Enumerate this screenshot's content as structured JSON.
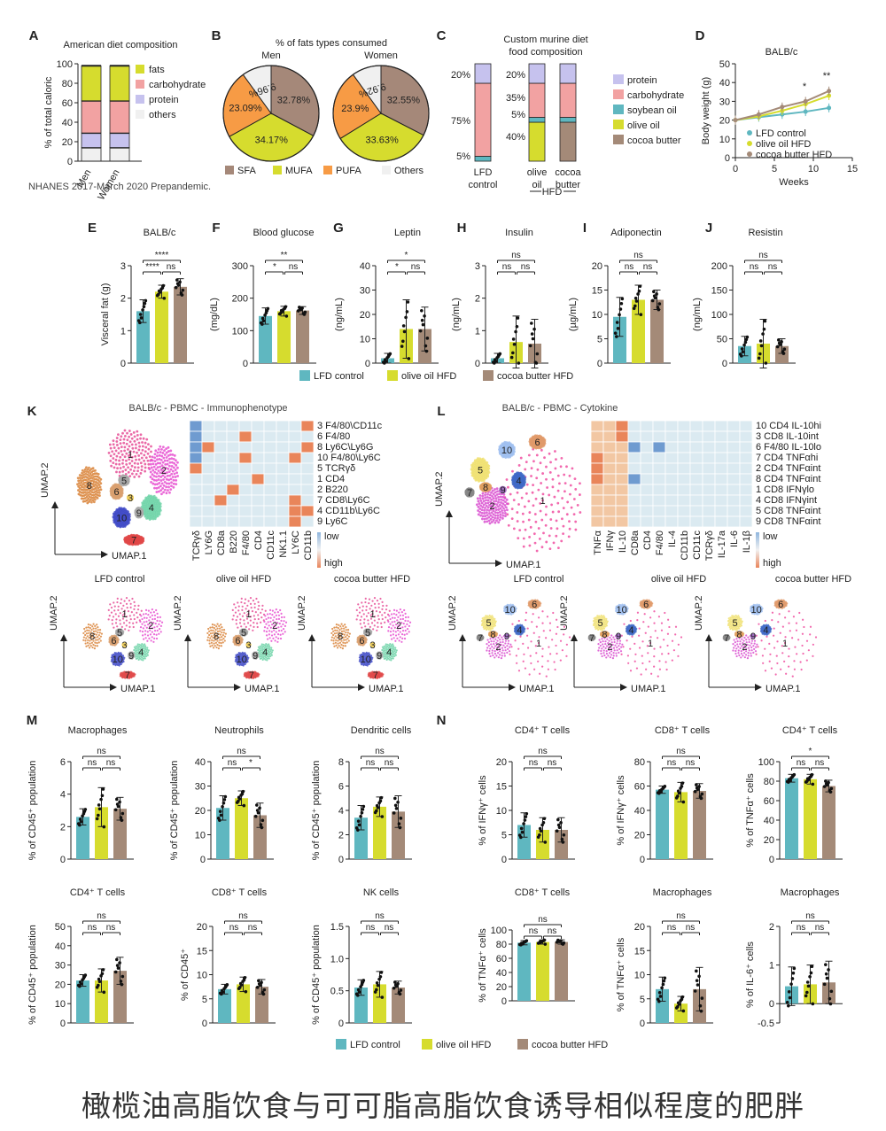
{
  "colors": {
    "lfd": "#5fb7c0",
    "olive": "#d6dc2e",
    "cocoa": "#a48a78",
    "fats": "#d6dc2e",
    "carb": "#f2a2a2",
    "protein": "#c6c2ee",
    "others": "#f0f0f0",
    "sfa": "#a58879",
    "mufa": "#d6dc2e",
    "pufa": "#f79b45",
    "soy": "#5fb7c0"
  },
  "caption": "橄榄油高脂饮食与可可脂高脂饮食诱导相似程度的肥胖",
  "legend_groups": [
    "LFD control",
    "olive oil HFD",
    "cocoa butter HFD"
  ],
  "panels": {
    "A": "A",
    "B": "B",
    "C": "C",
    "D": "D",
    "E": "E",
    "F": "F",
    "G": "G",
    "H": "H",
    "I": "I",
    "J": "J",
    "K": "K",
    "L": "L",
    "M": "M",
    "N": "N"
  },
  "chart_data": [
    {
      "id": "A",
      "type": "bar",
      "title": "American diet composition",
      "ylabel": "% of total caloric",
      "categories": [
        "Men",
        "Women"
      ],
      "ylim": [
        0,
        100
      ],
      "yticks": [
        "0",
        "20",
        "40",
        "60",
        "80",
        "100"
      ],
      "series": [
        {
          "name": "others",
          "values": [
            14,
            14
          ]
        },
        {
          "name": "protein",
          "values": [
            15,
            15
          ]
        },
        {
          "name": "carbohydrate",
          "values": [
            33,
            33
          ]
        },
        {
          "name": "fats",
          "values": [
            36,
            36
          ]
        }
      ],
      "note": "NHANES 2017-March 2020 Prepandemic."
    },
    {
      "id": "B",
      "type": "pie",
      "title": "% of fats types consumed",
      "legend": [
        "SFA",
        "MUFA",
        "PUFA",
        "Others"
      ],
      "pies": [
        {
          "name": "Men",
          "labels": [
            "32.78%",
            "34.17%",
            "23.09%",
            "9.96%"
          ],
          "values": [
            32.78,
            34.17,
            23.09,
            9.96
          ]
        },
        {
          "name": "Women",
          "labels": [
            "32.55%",
            "33.63%",
            "23.9%",
            "9.92%"
          ],
          "values": [
            32.55,
            33.63,
            23.9,
            9.92
          ]
        }
      ]
    },
    {
      "id": "C",
      "type": "bar",
      "title": "Custom murine diet food composition",
      "legend": [
        "protein",
        "carbohydrate",
        "soybean oil",
        "olive oil",
        "cocoa butter"
      ],
      "categories": [
        "LFD control",
        "olive oil",
        "cocoa butter"
      ],
      "group_label": "HFD",
      "stacks": [
        [
          {
            "c": "soy",
            "v": 5
          },
          {
            "c": "carb",
            "v": 75
          },
          {
            "c": "protein",
            "v": 20
          }
        ],
        [
          {
            "c": "olive",
            "v": 40
          },
          {
            "c": "soy",
            "v": 5
          },
          {
            "c": "carb",
            "v": 35
          },
          {
            "c": "protein",
            "v": 20
          }
        ],
        [
          {
            "c": "cocoa",
            "v": 40
          },
          {
            "c": "soy",
            "v": 5
          },
          {
            "c": "carb",
            "v": 35
          },
          {
            "c": "protein",
            "v": 20
          }
        ]
      ],
      "labels_left": [
        [
          "5%",
          "75%",
          "20%"
        ],
        [
          "40%",
          "5%",
          "35%",
          "20%"
        ],
        [
          "40%",
          "5%",
          "35%",
          "20%"
        ]
      ]
    },
    {
      "id": "D",
      "type": "line",
      "title": "BALB/c",
      "xlabel": "Weeks",
      "ylabel": "Body weight (g)",
      "xlim": [
        0,
        15
      ],
      "ylim": [
        0,
        50
      ],
      "xticks": [
        "0",
        "5",
        "10",
        "15"
      ],
      "yticks": [
        "0",
        "10",
        "20",
        "30",
        "40",
        "50"
      ],
      "x": [
        0,
        3,
        6,
        9,
        12
      ],
      "series": [
        {
          "name": "LFD control",
          "values": [
            20,
            21.5,
            23,
            24.5,
            26.5
          ]
        },
        {
          "name": "olive oil HFD",
          "values": [
            20,
            22,
            25,
            28.5,
            33
          ]
        },
        {
          "name": "cocoa butter HFD",
          "values": [
            20,
            23,
            27,
            30,
            35.5
          ]
        }
      ],
      "annotations": [
        "*",
        "**"
      ]
    },
    {
      "id": "E",
      "type": "bar",
      "title": "BALB/c",
      "ylabel": "Visceral fat (g)",
      "ylim": [
        0,
        3
      ],
      "yticks": [
        "0",
        "1",
        "2",
        "3"
      ],
      "values": [
        1.6,
        2.2,
        2.35
      ],
      "errors": [
        0.35,
        0.2,
        0.25
      ],
      "sig": [
        "****",
        "****",
        "ns"
      ]
    },
    {
      "id": "F",
      "type": "bar",
      "title": "Blood glucose",
      "ylabel": "(mg/dL)",
      "ylim": [
        0,
        300
      ],
      "yticks": [
        "0",
        "100",
        "200",
        "300"
      ],
      "values": [
        145,
        160,
        162
      ],
      "errors": [
        25,
        15,
        12
      ],
      "sig": [
        "**",
        "*",
        "ns"
      ]
    },
    {
      "id": "G",
      "type": "bar",
      "title": "Leptin",
      "ylabel": "(ng/mL)",
      "ylim": [
        0,
        40
      ],
      "yticks": [
        "0",
        "10",
        "20",
        "30",
        "40"
      ],
      "values": [
        2,
        14,
        14
      ],
      "errors": [
        2,
        12,
        9
      ],
      "sig": [
        "*",
        "*",
        "ns"
      ]
    },
    {
      "id": "H",
      "type": "bar",
      "title": "Insulin",
      "ylabel": "(ng/mL)",
      "ylim": [
        0,
        3
      ],
      "yticks": [
        "0",
        "1",
        "2",
        "3"
      ],
      "values": [
        0.15,
        0.65,
        0.6
      ],
      "errors": [
        0.15,
        0.8,
        0.75
      ],
      "sig": [
        "ns",
        "ns",
        "ns"
      ]
    },
    {
      "id": "I",
      "type": "bar",
      "title": "Adiponectin",
      "ylabel": "(µg/mL)",
      "ylim": [
        0,
        20
      ],
      "yticks": [
        "0",
        "5",
        "10",
        "15",
        "20"
      ],
      "values": [
        9.5,
        13,
        13
      ],
      "errors": [
        4,
        3,
        2
      ],
      "sig": [
        "ns",
        "ns",
        "ns"
      ]
    },
    {
      "id": "J",
      "type": "bar",
      "title": "Resistin",
      "ylabel": "(ng/mL)",
      "ylim": [
        0,
        200
      ],
      "yticks": [
        "0",
        "50",
        "100",
        "150",
        "200"
      ],
      "values": [
        35,
        40,
        35
      ],
      "errors": [
        20,
        50,
        15
      ],
      "sig": [
        "ns",
        "ns",
        "ns"
      ]
    },
    {
      "id": "K",
      "type": "heatmap",
      "title": "BALB/c - PBMC - Immunophenotype",
      "cols": [
        "TCRγδ",
        "LY6G",
        "CD8a",
        "B220",
        "F4/80",
        "CD4",
        "CD11c",
        "NK1.1",
        "LY6C",
        "CD11b"
      ],
      "rows": [
        "3 F4/80\\CD11c",
        "6 F4/80",
        "8 Ly6C\\Ly6G",
        "10 F4/80\\Ly6C",
        "5 TCRγδ",
        "1 CD4",
        "2 B220",
        "7 CD8\\Ly6C",
        "4 CD11b\\Ly6C",
        "9 Ly6C"
      ],
      "scale": [
        "low",
        "high"
      ],
      "axes": [
        "UMAP.1",
        "UMAP.2"
      ],
      "cluster_labels": [
        "1",
        "2",
        "3",
        "4",
        "5",
        "6",
        "7",
        "8",
        "9",
        "10"
      ],
      "sub_titles": [
        "LFD control",
        "olive oil HFD",
        "cocoa butter HFD"
      ]
    },
    {
      "id": "L",
      "type": "heatmap",
      "title": "BALB/c - PBMC - Cytokine",
      "cols": [
        "TNFα",
        "IFNγ",
        "IL-10",
        "CD8a",
        "CD4",
        "F4/80",
        "IL-4",
        "CD11b",
        "CD11c",
        "TCRγδ",
        "IL-17a",
        "IL-6",
        "IL-1β"
      ],
      "rows": [
        "10 CD4 IL-10hi",
        "3 CD8 IL-10int",
        "6 F4/80 IL-10lo",
        "7 CD4 TNFαhi",
        "2 CD4 TNFαint",
        "8 CD4 TNFαint",
        "1 CD8 IFNγlo",
        "4 CD8 IFNγint",
        "5 CD8 TNFαint",
        "9 CD8 TNFαint"
      ],
      "scale": [
        "low",
        "high"
      ],
      "axes": [
        "UMAP.1",
        "UMAP.2"
      ],
      "cluster_labels": [
        "1",
        "2",
        "4",
        "5",
        "6",
        "7",
        "8",
        "9",
        "10"
      ],
      "sub_titles": [
        "LFD control",
        "olive oil HFD",
        "cocoa butter HFD"
      ]
    },
    {
      "id": "M1",
      "type": "bar",
      "title": "Macrophages",
      "ylabel": "% of CD45⁺ population",
      "ylim": [
        0,
        6
      ],
      "yticks": [
        "0",
        "2",
        "4",
        "6"
      ],
      "values": [
        2.6,
        3.2,
        3.1
      ],
      "errors": [
        0.5,
        1.2,
        0.7
      ],
      "sig": [
        "ns",
        "ns",
        "ns"
      ]
    },
    {
      "id": "M2",
      "type": "bar",
      "title": "Neutrophils",
      "ylabel": "% of CD45⁺ population",
      "ylim": [
        0,
        40
      ],
      "yticks": [
        "0",
        "10",
        "20",
        "30",
        "40"
      ],
      "values": [
        21,
        25,
        18
      ],
      "errors": [
        5,
        3,
        5
      ],
      "sig": [
        "ns",
        "ns",
        "*"
      ]
    },
    {
      "id": "M3",
      "type": "bar",
      "title": "Dendritic cells",
      "ylabel": "% of CD45⁺ population",
      "ylim": [
        0,
        8
      ],
      "yticks": [
        "0",
        "2",
        "4",
        "6",
        "8"
      ],
      "values": [
        3.4,
        4.3,
        3.9
      ],
      "errors": [
        1.0,
        0.8,
        1.3
      ],
      "sig": [
        "ns",
        "ns",
        "ns"
      ]
    },
    {
      "id": "M4",
      "type": "bar",
      "title": "CD4⁺ T cells",
      "ylabel": "% of CD45⁺ population",
      "ylim": [
        0,
        50
      ],
      "yticks": [
        "0",
        "10",
        "20",
        "30",
        "40",
        "50"
      ],
      "values": [
        22,
        22,
        27
      ],
      "errors": [
        3,
        6,
        7
      ],
      "sig": [
        "ns",
        "ns",
        "ns"
      ]
    },
    {
      "id": "M5",
      "type": "bar",
      "title": "CD8⁺ T cells",
      "ylabel": "% of CD45⁺",
      "ylim": [
        0,
        20
      ],
      "yticks": [
        "0",
        "5",
        "10",
        "15",
        "20"
      ],
      "values": [
        7,
        8,
        7.5
      ],
      "errors": [
        1,
        1.5,
        1.5
      ],
      "sig": [
        "ns",
        "ns",
        "ns"
      ]
    },
    {
      "id": "M6",
      "type": "bar",
      "title": "NK cells",
      "ylabel": "% of CD45⁺ population",
      "ylim": [
        0,
        1.5
      ],
      "yticks": [
        "0",
        "0.5",
        "1.0",
        "1.5"
      ],
      "values": [
        0.55,
        0.6,
        0.55
      ],
      "errors": [
        0.12,
        0.2,
        0.1
      ],
      "sig": [
        "ns",
        "ns",
        "ns"
      ]
    },
    {
      "id": "N1",
      "type": "bar",
      "title": "CD4⁺ T cells",
      "ylabel": "% of IFNγ⁺ cells",
      "ylim": [
        0,
        20
      ],
      "yticks": [
        "0",
        "5",
        "10",
        "15",
        "20"
      ],
      "values": [
        7,
        6,
        6
      ],
      "errors": [
        2.5,
        2.5,
        2.5
      ],
      "sig": [
        "ns",
        "ns",
        "ns"
      ]
    },
    {
      "id": "N2",
      "type": "bar",
      "title": "CD8⁺ T cells",
      "ylabel": "% of IFNγ⁺ cells",
      "ylim": [
        0,
        80
      ],
      "yticks": [
        "0",
        "20",
        "40",
        "60",
        "80"
      ],
      "values": [
        57,
        55,
        56
      ],
      "errors": [
        3,
        8,
        6
      ],
      "sig": [
        "ns",
        "ns",
        "ns"
      ]
    },
    {
      "id": "N3",
      "type": "bar",
      "title": "CD4⁺ T cells",
      "ylabel": "% of TNFα⁺ cells",
      "ylim": [
        0,
        100
      ],
      "yticks": [
        "0",
        "20",
        "40",
        "60",
        "80",
        "100"
      ],
      "values": [
        83,
        82,
        75
      ],
      "errors": [
        4,
        5,
        6
      ],
      "sig": [
        "*",
        "ns",
        "ns"
      ]
    },
    {
      "id": "N4",
      "type": "bar",
      "title": "CD8⁺ T cells",
      "ylabel": "% of TNFα⁺ cells",
      "ylim": [
        0,
        100
      ],
      "yticks": [
        "0",
        "20",
        "40",
        "60",
        "80",
        "100"
      ],
      "values": [
        82,
        83,
        83
      ],
      "errors": [
        3,
        3,
        3
      ],
      "sig": [
        "ns",
        "ns",
        "ns"
      ]
    },
    {
      "id": "N5",
      "type": "bar",
      "title": "Macrophages",
      "ylabel": "% of TNFα⁺ cells",
      "ylim": [
        0,
        20
      ],
      "yticks": [
        "0",
        "5",
        "10",
        "15",
        "20"
      ],
      "values": [
        7,
        4,
        7
      ],
      "errors": [
        2.5,
        1.5,
        4.5
      ],
      "sig": [
        "ns",
        "ns",
        "ns"
      ]
    },
    {
      "id": "N6",
      "type": "bar",
      "title": "Macrophages",
      "ylabel": "% of IL-6⁺ cells",
      "ylim": [
        -0.5,
        2
      ],
      "yticks": [
        "-0.5",
        "0",
        "1",
        "2"
      ],
      "values": [
        0.45,
        0.5,
        0.55
      ],
      "errors": [
        0.5,
        0.5,
        0.55
      ],
      "sig": [
        "ns",
        "ns",
        "ns"
      ]
    }
  ]
}
